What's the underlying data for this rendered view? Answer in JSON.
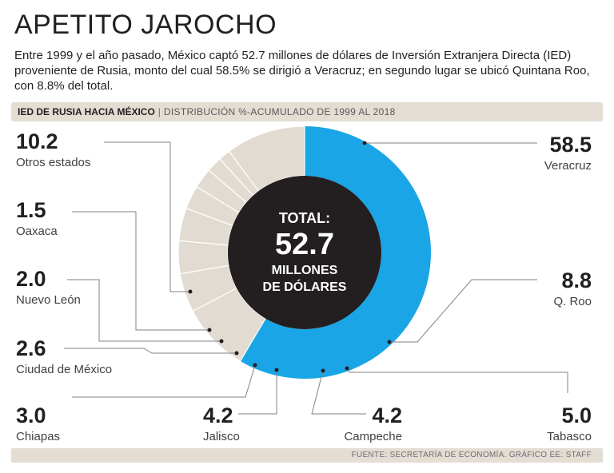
{
  "header": {
    "title": "APETITO JAROCHO",
    "intro": "Entre 1999 y el año pasado, México captó 52.7 millones de dólares de Inversión Extranjera Directa (IED) proveniente de Rusia, monto del cual 58.5% se dirigió a Veracruz; en segundo lugar se ubicó Quintana Roo, con 8.8% del total."
  },
  "section": {
    "label": "IED DE RUSIA HACIA MÉXICO",
    "separator": "|",
    "subtitle": "DISTRIBUCIÓN %-ACUMULADO DE 1999 AL 2018"
  },
  "footer": {
    "source": "FUENTE: SECRETARÍA DE ECONOMÍA. GRÁFICO EE: STAFF"
  },
  "colors": {
    "veracruz": "#1aa6e6",
    "others": "#e2dbd1",
    "center": "#231f20",
    "background": "#ffffff"
  },
  "chart_data": {
    "type": "pie",
    "donut": true,
    "center_label": {
      "line1": "TOTAL:",
      "value": "52.7",
      "line2": "MILLONES",
      "line3": "DE DÓLARES"
    },
    "categories": [
      "Veracruz",
      "Q. Roo",
      "Tabasco",
      "Campeche",
      "Jalisco",
      "Chiapas",
      "Ciudad de México",
      "Nuevo León",
      "Oaxaca",
      "Otros estados"
    ],
    "values": [
      58.5,
      8.8,
      5.0,
      4.2,
      4.2,
      3.0,
      2.6,
      2.0,
      1.5,
      10.2
    ],
    "value_labels": [
      "58.5",
      "8.8",
      "5.0",
      "4.2",
      "4.2",
      "3.0",
      "2.6",
      "2.0",
      "1.5",
      "10.2"
    ],
    "unit": "%"
  }
}
